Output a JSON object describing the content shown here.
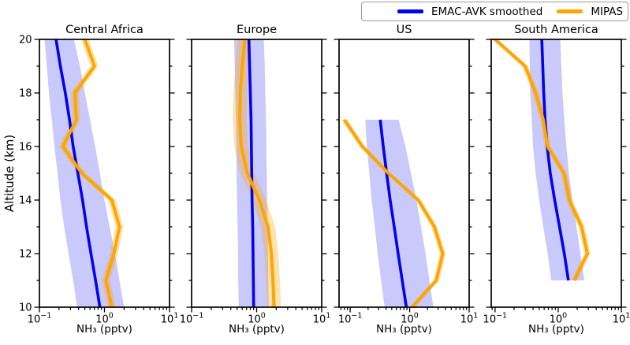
{
  "legend": {
    "items": [
      {
        "label": "EMAC-AVK smoothed",
        "color": "#0202ee"
      },
      {
        "label": "MIPAS",
        "color": "#ffa500"
      }
    ]
  },
  "colors": {
    "emac_line": "#0202ee",
    "emac_band": "rgba(0,0,238,0.21)",
    "mipas_line": "#ffa500",
    "mipas_band": "rgba(255,165,0,0.32)",
    "axis": "#000000"
  },
  "chart_data": {
    "type": "line",
    "x_scale": "log",
    "xlabel": "NH₃ (pptv)",
    "ylabel": "Altitude (km)",
    "ylim": [
      10,
      20
    ],
    "grid": false,
    "legend_position": "top-right",
    "xticks": {
      "base": "10",
      "values": [
        0.1,
        1,
        10
      ],
      "exponents": [
        "−1",
        "0",
        "1"
      ]
    },
    "yticks": {
      "values": [
        10,
        12,
        14,
        16,
        18,
        20
      ],
      "labels": [
        "10",
        "12",
        "14",
        "16",
        "18",
        "20"
      ],
      "minor_step": 1
    },
    "panels": [
      {
        "title": "Central Africa",
        "xlim": [
          0.1,
          10
        ],
        "series": [
          {
            "name": "EMAC-AVK smoothed",
            "altitudes": [
              10,
              11,
              12,
              13,
              14,
              15,
              16,
              17,
              18,
              19,
              20
            ],
            "values": [
              0.85,
              0.73,
              0.62,
              0.53,
              0.46,
              0.39,
              0.33,
              0.29,
              0.25,
              0.21,
              0.18
            ],
            "band_lo": [
              0.38,
              0.33,
              0.28,
              0.24,
              0.21,
              0.19,
              0.17,
              0.155,
              0.14,
              0.13,
              0.12
            ],
            "band_hi": [
              2.0,
              1.7,
              1.45,
              1.2,
              1.0,
              0.85,
              0.72,
              0.6,
              0.5,
              0.42,
              0.34
            ]
          },
          {
            "name": "MIPAS",
            "altitudes": [
              10,
              11,
              12,
              13,
              14,
              15,
              16,
              17,
              18,
              19,
              20
            ],
            "values": [
              1.3,
              1.05,
              1.4,
              1.7,
              1.3,
              0.45,
              0.23,
              0.37,
              0.35,
              0.7,
              0.5
            ],
            "band_factor": 1.15
          }
        ]
      },
      {
        "title": "Europe",
        "xlim": [
          0.1,
          10
        ],
        "series": [
          {
            "name": "EMAC-AVK smoothed",
            "altitudes": [
              10,
              11,
              12,
              13,
              14,
              15,
              16,
              17,
              18,
              19,
              20
            ],
            "values": [
              0.9,
              0.89,
              0.88,
              0.87,
              0.85,
              0.84,
              0.83,
              0.82,
              0.8,
              0.78,
              0.76
            ],
            "band_lo": [
              0.53,
              0.52,
              0.52,
              0.51,
              0.5,
              0.49,
              0.49,
              0.48,
              0.47,
              0.46,
              0.45
            ],
            "band_hi": [
              1.53,
              1.51,
              1.5,
              1.48,
              1.45,
              1.43,
              1.41,
              1.39,
              1.36,
              1.33,
              1.29
            ]
          },
          {
            "name": "MIPAS",
            "altitudes": [
              10,
              11,
              12,
              13,
              14,
              15,
              16,
              17,
              18,
              19,
              20
            ],
            "values": [
              1.85,
              1.78,
              1.68,
              1.5,
              1.1,
              0.72,
              0.58,
              0.55,
              0.56,
              0.6,
              0.66
            ],
            "band_factor": 1.28
          }
        ]
      },
      {
        "title": "US",
        "xlim": [
          0.065,
          10
        ],
        "series": [
          {
            "name": "EMAC-AVK smoothed",
            "altitudes": [
              10,
              11,
              12,
              13,
              14,
              15,
              16,
              17
            ],
            "values": [
              0.88,
              0.75,
              0.64,
              0.55,
              0.47,
              0.41,
              0.36,
              0.32
            ],
            "band_lo": [
              0.38,
              0.33,
              0.29,
              0.26,
              0.23,
              0.21,
              0.19,
              0.18
            ],
            "band_hi": [
              2.5,
              2.15,
              1.85,
              1.55,
              1.3,
              1.05,
              0.85,
              0.65
            ]
          },
          {
            "name": "MIPAS",
            "altitudes": [
              10,
              11,
              12,
              13,
              14,
              15,
              16,
              17
            ],
            "values": [
              1.1,
              2.8,
              3.6,
              2.6,
              1.4,
              0.44,
              0.16,
              0.08
            ],
            "band_factor": 1.12
          }
        ]
      },
      {
        "title": "South America",
        "xlim": [
          0.087,
          10
        ],
        "series": [
          {
            "name": "EMAC-AVK smoothed",
            "altitudes": [
              11,
              12,
              13,
              14,
              15,
              16,
              17,
              18,
              19,
              20
            ],
            "values": [
              1.45,
              1.25,
              1.05,
              0.88,
              0.75,
              0.67,
              0.62,
              0.59,
              0.57,
              0.55
            ],
            "band_lo": [
              0.78,
              0.68,
              0.58,
              0.5,
              0.44,
              0.4,
              0.38,
              0.36,
              0.355,
              0.35
            ],
            "band_hi": [
              2.6,
              2.25,
              1.95,
              1.68,
              1.48,
              1.35,
              1.25,
              1.17,
              1.12,
              1.08
            ]
          },
          {
            "name": "MIPAS",
            "altitudes": [
              11,
              12,
              13,
              14,
              15,
              16,
              17,
              18,
              19,
              20
            ],
            "values": [
              1.8,
              2.9,
              2.35,
              1.5,
              1.24,
              0.68,
              0.58,
              0.44,
              0.3,
              0.1
            ],
            "band_factor": 1.12
          }
        ]
      }
    ]
  }
}
